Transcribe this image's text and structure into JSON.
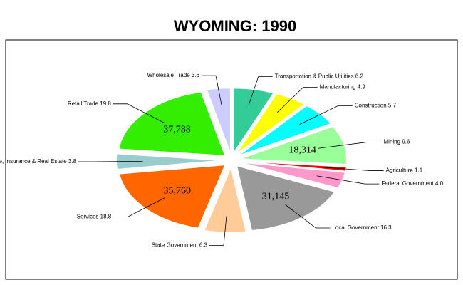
{
  "chart_data": {
    "type": "pie",
    "title": "WYOMING:  1990",
    "categories": [
      "Transportation & Public Utilities",
      "Manufacturing",
      "Construction",
      "Mining",
      "Agriculture",
      "Federal Government",
      "Local Government",
      "State Government",
      "Services",
      "Finance, Insurance & Real Estate",
      "Retail Trade",
      "Wholesale Trade"
    ],
    "values": [
      6.2,
      4.9,
      5.7,
      9.6,
      1.1,
      4.0,
      16.3,
      6.3,
      18.8,
      3.8,
      19.8,
      3.6
    ],
    "value_labels": [
      "6.2",
      "4.9",
      "5.7",
      "9.6",
      "1.1",
      "4.0",
      "16.3",
      "6.3",
      "18.8",
      "3.8",
      "19.8",
      "3.6"
    ],
    "slice_labels": [
      null,
      null,
      null,
      "18,314",
      null,
      null,
      "31,145",
      null,
      "35,760",
      null,
      "37,788",
      null
    ],
    "colors": [
      "#33cc99",
      "#ffff00",
      "#00ffff",
      "#99ff99",
      "#ff0000",
      "#ff99cc",
      "#999999",
      "#ffcc99",
      "#ff6600",
      "#99cccc",
      "#33ee00",
      "#ccccff"
    ]
  }
}
